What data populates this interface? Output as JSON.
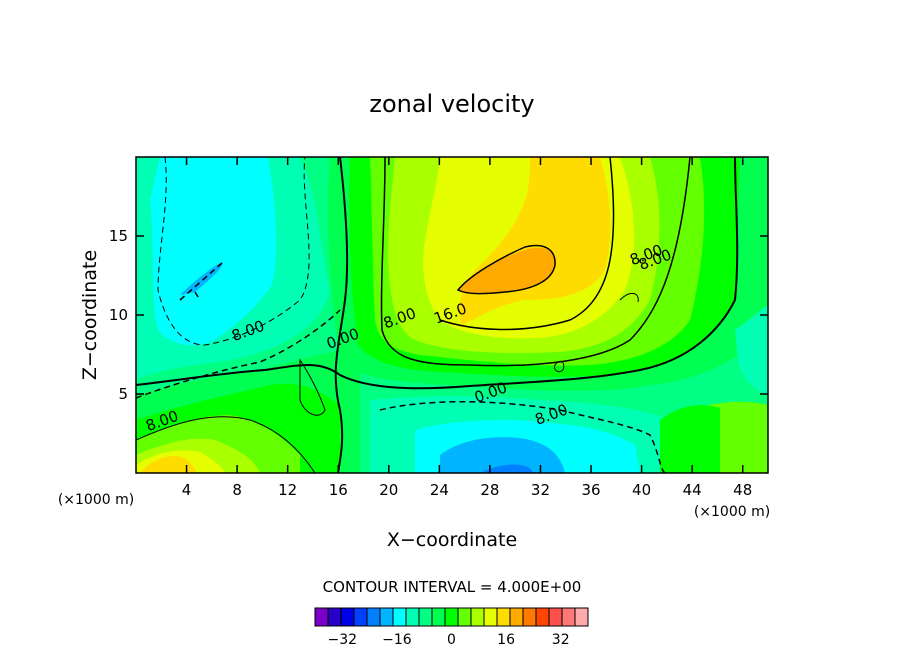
{
  "chart_data": {
    "type": "heatmap",
    "title": "zonal velocity",
    "xlabel": "X−coordinate",
    "ylabel": "Z−coordinate",
    "x_unit_left": "(×1000 m)",
    "x_unit_right": "(×1000 m)",
    "xlim": [
      0,
      50
    ],
    "ylim": [
      0,
      20
    ],
    "xticks": [
      4,
      8,
      12,
      16,
      20,
      24,
      28,
      32,
      36,
      40,
      44,
      48
    ],
    "yticks": [
      5,
      10,
      15
    ],
    "contour_interval_label": "CONTOUR INTERVAL = 4.000E+00",
    "colorbar": {
      "levels": [
        -40,
        -36,
        -32,
        -28,
        -24,
        -20,
        -16,
        -12,
        -8,
        -4,
        0,
        4,
        8,
        12,
        16,
        20,
        24,
        28,
        32,
        36,
        40
      ],
      "colors": [
        "#7a00c8",
        "#2800c8",
        "#0000e6",
        "#0040ff",
        "#0080ff",
        "#00b4ff",
        "#00ffff",
        "#00ffb4",
        "#00ff82",
        "#00ff50",
        "#00ff00",
        "#64ff00",
        "#aaff00",
        "#e6ff00",
        "#ffdc00",
        "#ffaa00",
        "#ff7800",
        "#ff4600",
        "#ff5050",
        "#ff7878",
        "#ffaaaa"
      ],
      "tick_labels": [
        {
          "value": -32,
          "label": "−32"
        },
        {
          "value": -16,
          "label": "−16"
        },
        {
          "value": 0,
          "label": "0"
        },
        {
          "value": 16,
          "label": "16"
        },
        {
          "value": 32,
          "label": "32"
        }
      ]
    },
    "contour_labels": [
      {
        "text": "8.00",
        "x": 9,
        "y": 8.7
      },
      {
        "text": "8.00",
        "x": 2.2,
        "y": 3.0
      },
      {
        "text": "0.00",
        "x": 16.5,
        "y": 8.2
      },
      {
        "text": "8.00",
        "x": 21.0,
        "y": 9.5
      },
      {
        "text": "16.0",
        "x": 25.0,
        "y": 9.8
      },
      {
        "text": "0.00",
        "x": 28.2,
        "y": 4.8
      },
      {
        "text": "8.00",
        "x": 33.0,
        "y": 3.4
      },
      {
        "text": "8.00",
        "x": 41.2,
        "y": 13.2
      },
      {
        "text": "8.00",
        "x": 40.5,
        "y": 13.5
      }
    ]
  }
}
